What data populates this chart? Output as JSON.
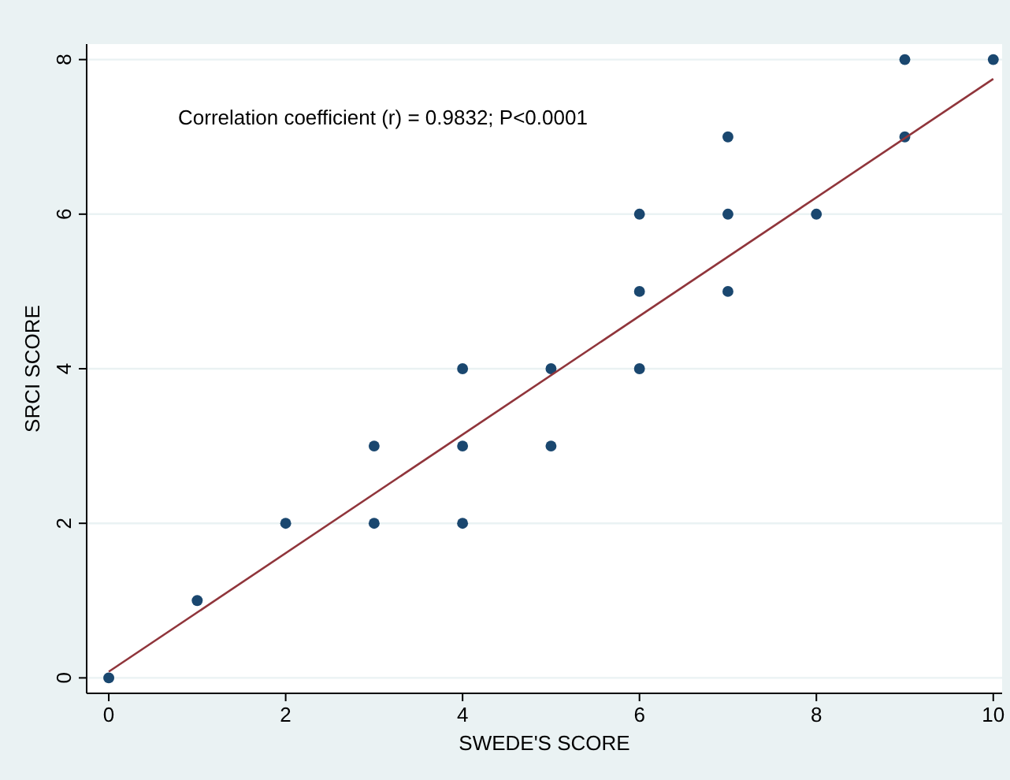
{
  "chart_data": {
    "type": "scatter",
    "xlabel": "SWEDE'S SCORE",
    "ylabel": "SRCI SCORE",
    "annotations": [
      "Correlation coefficient (r) = 0.9832; P<0.0001"
    ],
    "xlim": [
      -0.25,
      10.1
    ],
    "ylim": [
      -0.2,
      8.2
    ],
    "xticks": [
      0,
      2,
      4,
      6,
      8,
      10
    ],
    "yticks": [
      0,
      2,
      4,
      6,
      8
    ],
    "grid": "y",
    "series": [
      {
        "marker": "circle",
        "color": "#1a476f",
        "x": [
          0,
          1,
          2,
          3,
          3,
          4,
          4,
          4,
          5,
          5,
          6,
          6,
          6,
          7,
          7,
          7,
          8,
          9,
          9,
          10
        ],
        "values": [
          0,
          1,
          2,
          2,
          3,
          2,
          3,
          4,
          3,
          4,
          4,
          5,
          6,
          5,
          6,
          7,
          6,
          7,
          8,
          8
        ]
      },
      {
        "type": "line",
        "color": "#90353b",
        "x": [
          0,
          10
        ],
        "values": [
          0.08,
          7.75
        ]
      }
    ]
  }
}
